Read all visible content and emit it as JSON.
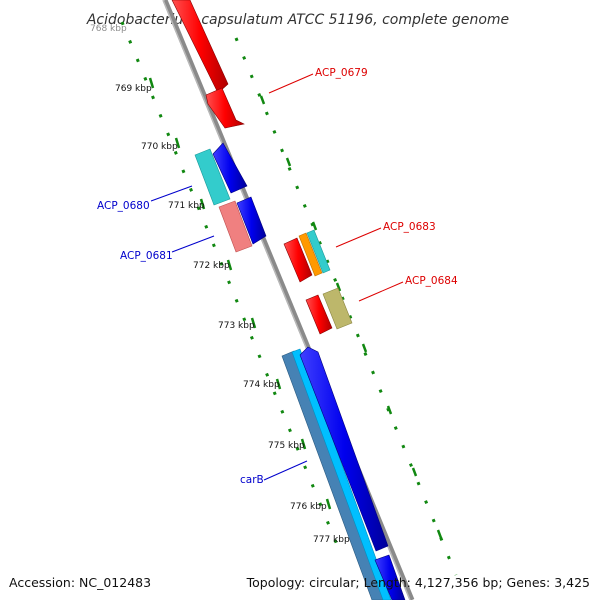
{
  "title": "Acidobacterium capsulatum ATCC 51196, complete genome",
  "footer": {
    "accession": "Accession: NC_012483",
    "summary": "Topology: circular; Length: 4,127,356 bp; Genes: 3,425"
  },
  "ticks": [
    "768 kbp",
    "769 kbp",
    "770 kbp",
    "771 kbp",
    "772 kbp",
    "773 kbp",
    "774 kbp",
    "775 kbp",
    "776 kbp",
    "777 kbp"
  ],
  "gene_labels": {
    "acp0679": "ACP_0679",
    "acp0680": "ACP_0680",
    "acp0681": "ACP_0681",
    "acp0683": "ACP_0683",
    "acp0684": "ACP_0684",
    "carB": "carB"
  },
  "colors": {
    "forward_strand": "#ff0000",
    "reverse_strand": "#0000ee",
    "cyan": "#33cccc",
    "pink": "#f08080",
    "orange": "#ff9900",
    "khaki": "#bdb76b",
    "steel": "#4682b4",
    "sky": "#00bfff",
    "backbone": "#8a8a8a",
    "ticks": "#118811"
  }
}
